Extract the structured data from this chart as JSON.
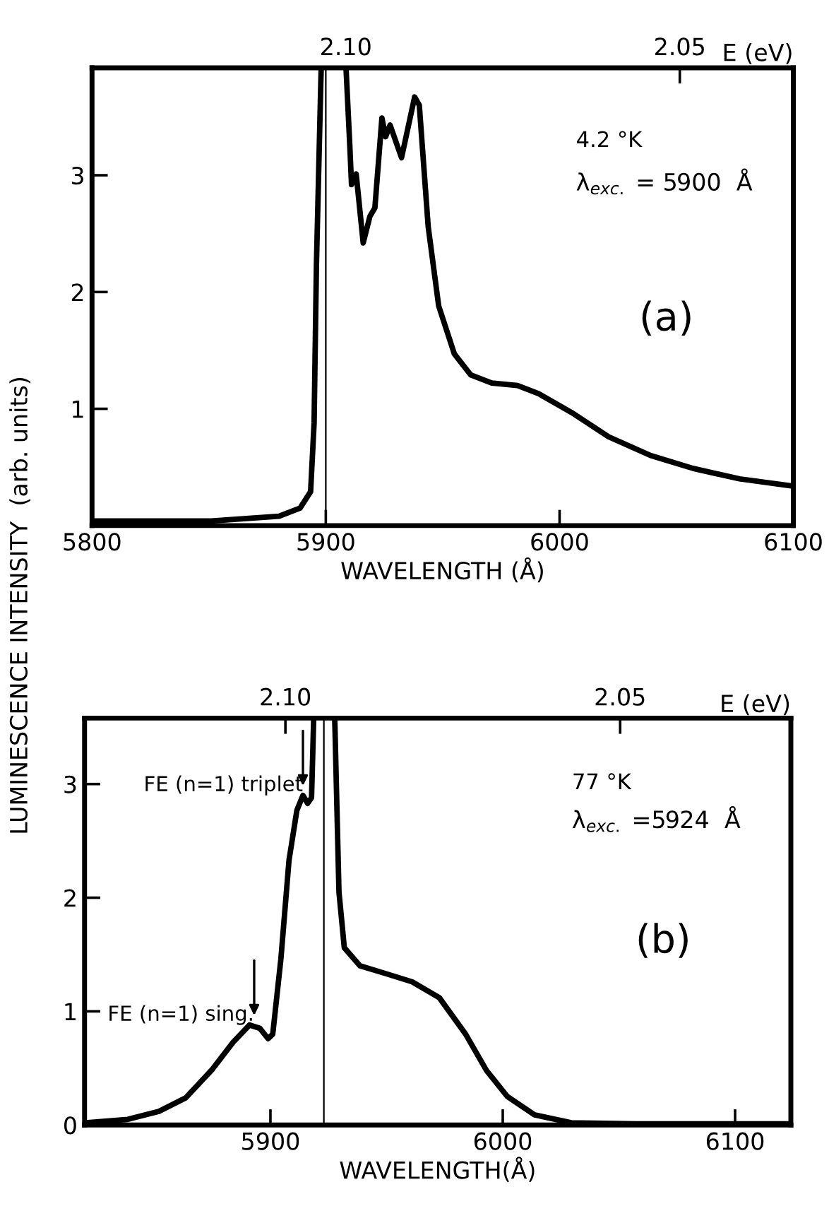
{
  "chart_data": [
    {
      "type": "line",
      "ylabel": "LUMINESCENCE INTENSITY  (arb. units)",
      "xlabel": "WAVELENGTH (Å)",
      "x2label": "E (eV)",
      "xlim": [
        5800,
        6100
      ],
      "xticks": [
        5800,
        5900,
        6000,
        6100
      ],
      "ylim": [
        0,
        3.92
      ],
      "yticks": [
        1,
        2,
        3
      ],
      "x2lim": [
        2.138,
        2.033
      ],
      "x2ticks": [
        {
          "value": 2.1,
          "label": "2.10"
        },
        2.05
      ],
      "grid": false,
      "marker": "none",
      "line_style": "solid",
      "ref_lines": [
        {
          "axis": "x",
          "value": 5900,
          "color": "#000000"
        }
      ],
      "annotations": [
        "4.2 °K",
        "λ$_{exc.}$ = 5900  Å",
        "(a)"
      ],
      "series": [
        {
          "color": "#000000",
          "x": [
            5800,
            5851,
            5880,
            5889,
            5893.5,
            5895,
            5896,
            5898,
            5903,
            5908.7,
            5910.3,
            5911,
            5913,
            5916,
            5918.9,
            5921,
            5924,
            5925.6,
            5927.5,
            5932.4,
            5938,
            5940,
            5943.8,
            5948.3,
            5955,
            5962,
            5971,
            5982,
            5991,
            6005,
            6021,
            6039,
            6057,
            6077,
            6099
          ],
          "values": [
            0.04,
            0.04,
            0.08,
            0.15,
            0.29,
            0.88,
            2.24,
            3.9,
            null,
            3.9,
            3.24,
            2.92,
            3.01,
            2.42,
            2.65,
            2.72,
            3.49,
            3.33,
            3.43,
            3.15,
            3.67,
            3.6,
            2.56,
            1.88,
            1.47,
            1.29,
            1.22,
            1.2,
            1.13,
            0.97,
            0.76,
            0.6,
            0.49,
            0.4,
            0.34
          ]
        }
      ]
    },
    {
      "type": "line",
      "xlabel": "WAVELENGTH(Å)",
      "x2label": "E (eV)",
      "xlim": [
        5820,
        6124
      ],
      "xticks": [
        5900,
        6000,
        6100
      ],
      "ylim": [
        0,
        3.58
      ],
      "yticks": [
        0,
        1,
        2,
        3
      ],
      "x2lim": [
        2.13,
        2.0245
      ],
      "x2ticks": [
        {
          "value": 2.1,
          "label": "2.10"
        },
        2.05
      ],
      "grid": false,
      "marker": "none",
      "line_style": "solid",
      "ref_lines": [
        {
          "axis": "x",
          "value": 5923,
          "color": "#000000"
        }
      ],
      "annotations": [
        "77 °K",
        "λ$_{exc.}$ =5924  Å",
        "(b)",
        {
          "text": "FE (n=1) triplet",
          "x": 5914,
          "y": 2.9
        },
        {
          "text": "FE (n=1) sing.",
          "x": 5893,
          "y": 0.88
        }
      ],
      "series": [
        {
          "color": "#000000",
          "x": [
            5820.5,
            5838.6,
            5852,
            5863.6,
            5875,
            5884,
            5891,
            5895.5,
            5899,
            5901,
            5904.5,
            5908,
            5911.4,
            5914,
            5916,
            5917.7,
            5918.6,
            5923,
            5927.7,
            5929.5,
            5931.8,
            5938.6,
            5950,
            5961,
            5972.7,
            5984,
            5993,
            6002,
            6013.6,
            6029.5,
            6057,
            6122.7
          ],
          "values": [
            0.02,
            0.05,
            0.12,
            0.24,
            0.49,
            0.73,
            0.88,
            0.85,
            0.76,
            0.8,
            1.46,
            2.33,
            2.77,
            2.9,
            2.83,
            2.88,
            3.56,
            null,
            3.56,
            2.05,
            1.56,
            1.4,
            1.33,
            1.26,
            1.12,
            0.8,
            0.48,
            0.25,
            0.09,
            0.02,
            0.01,
            0.01
          ]
        }
      ]
    }
  ]
}
